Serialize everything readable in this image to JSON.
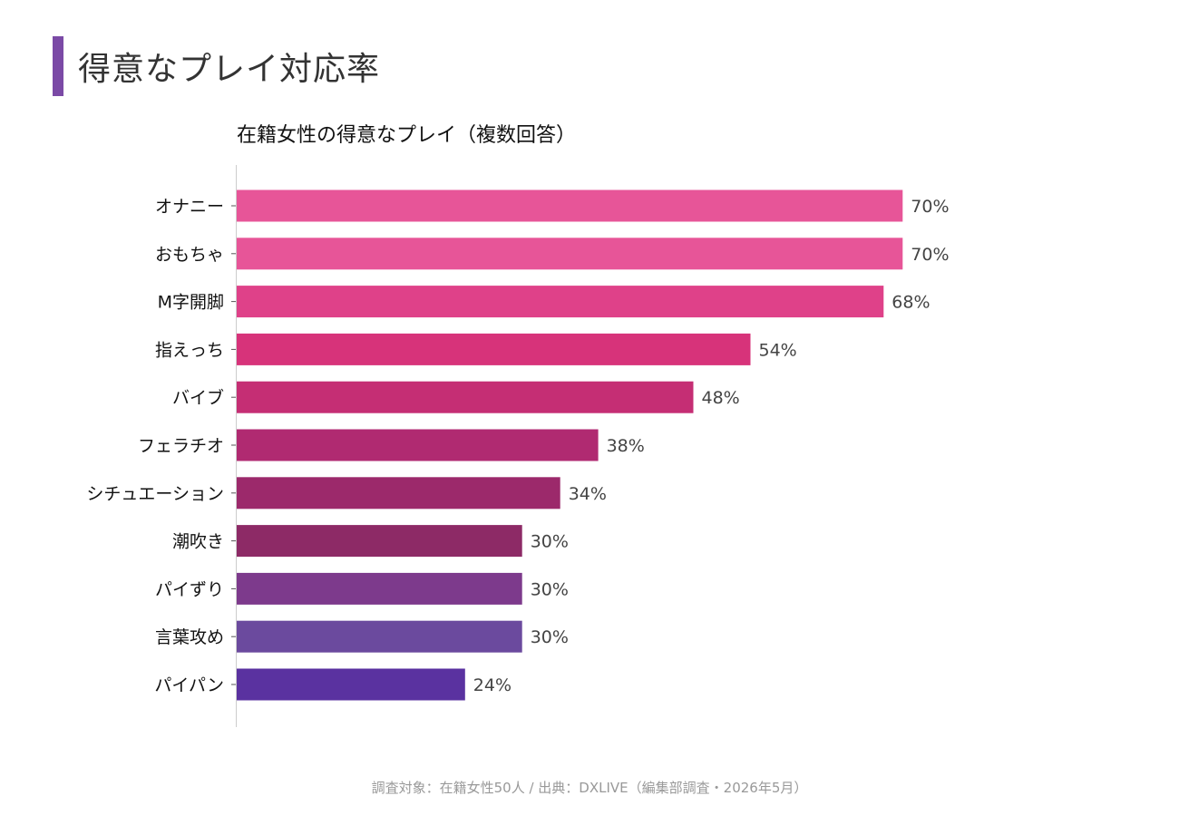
{
  "page_title": "得意なプレイ対応率",
  "footer": "調査対象：在籍女性50人 / 出典：DXLIVE（編集部調査・2026年5月）",
  "chart_data": {
    "type": "bar",
    "orientation": "horizontal",
    "title": "在籍女性の得意なプレイ（複数回答）",
    "xlabel": "",
    "ylabel": "",
    "xlim": [
      0,
      100
    ],
    "grid": false,
    "value_suffix": "%",
    "categories": [
      "オナニー",
      "おもちゃ",
      "M字開脚",
      "指えっち",
      "バイブ",
      "フェラチオ",
      "シチュエーション",
      "潮吹き",
      "パイずり",
      "言葉攻め",
      "パイパン"
    ],
    "values": [
      70,
      70,
      68,
      54,
      48,
      38,
      34,
      30,
      30,
      30,
      24
    ],
    "colors": [
      "#e75598",
      "#e75598",
      "#df4189",
      "#d7337a",
      "#c52e74",
      "#b02a71",
      "#9c296b",
      "#8d2a66",
      "#7d3a8c",
      "#6b4a9e",
      "#5a32a0"
    ]
  }
}
